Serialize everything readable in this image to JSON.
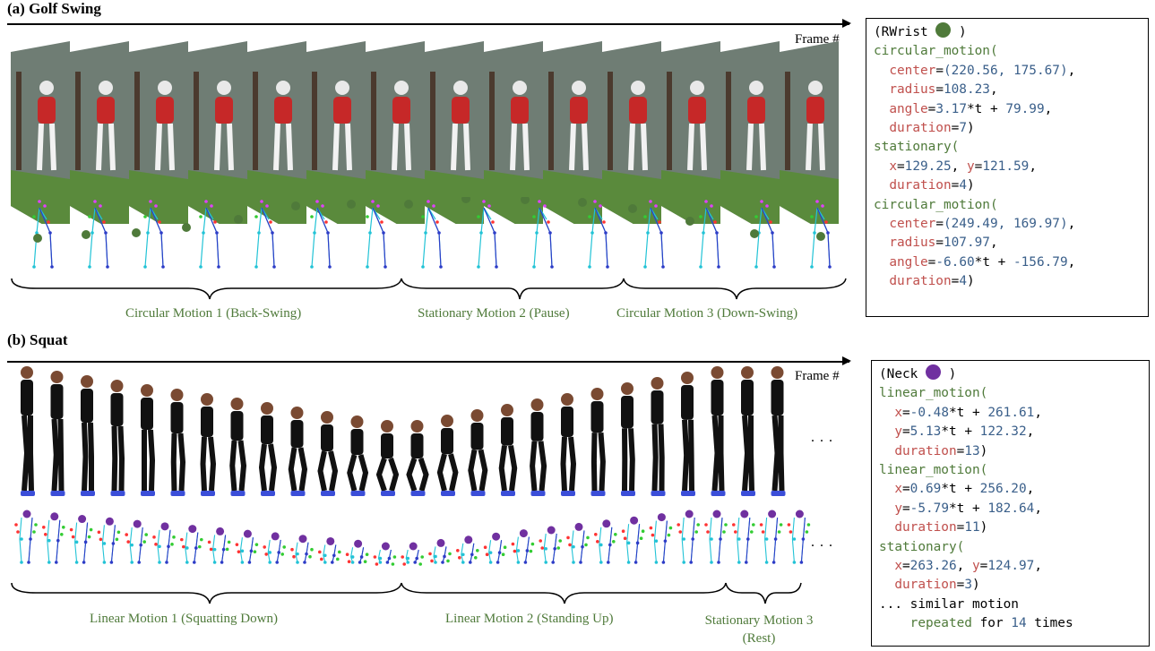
{
  "golf": {
    "title": "(a) Golf Swing",
    "frame_label": "Frame #",
    "joint_color": "#4f7a3a",
    "segments": [
      {
        "label": "Circular Motion 1 (Back-Swing)"
      },
      {
        "label": "Stationary Motion 2 (Pause)"
      },
      {
        "label": "Circular Motion 3 (Down-Swing)"
      }
    ],
    "code": {
      "header_open": "(RWrist ",
      "header_close": " )",
      "dot_color": "#4f7a3a",
      "blocks": [
        {
          "fn": "circular_motion(",
          "args": [
            {
              "key": "center",
              "eq": "=",
              "val": "(220.56, 175.67)",
              "tail": ","
            },
            {
              "key": "radius",
              "eq": "=",
              "val": "108.23",
              "tail": ","
            },
            {
              "key": "angle",
              "eq": "=",
              "val": "3.17",
              "mid": "*t + ",
              "val2": "79.99",
              "tail": ","
            },
            {
              "key": "duration",
              "eq": "=",
              "val": "7",
              "tail": ")"
            }
          ]
        },
        {
          "fn": "stationary(",
          "args": [
            {
              "key": "x",
              "eq": "=",
              "val": "129.25",
              "tail": ", ",
              "key2": "y",
              "val2": "121.59",
              "tail2": ","
            },
            {
              "key": "duration",
              "eq": "=",
              "val": "4",
              "tail": ")"
            }
          ]
        },
        {
          "fn": "circular_motion(",
          "args": [
            {
              "key": "center",
              "eq": "=",
              "val": "(249.49, 169.97)",
              "tail": ","
            },
            {
              "key": "radius",
              "eq": "=",
              "val": "107.97",
              "tail": ","
            },
            {
              "key": "angle",
              "eq": "=",
              "val": "-6.60",
              "mid": "*t + ",
              "val2": "-156.79",
              "tail": ","
            },
            {
              "key": "duration",
              "eq": "=",
              "val": "4",
              "tail": ")"
            }
          ]
        }
      ]
    }
  },
  "squat": {
    "title": "(b) Squat",
    "frame_label": "Frame #",
    "ellipsis": "...",
    "joint_color": "#7030a0",
    "segments": [
      {
        "label": "Linear Motion 1 (Squatting Down)"
      },
      {
        "label": "Linear Motion 2 (Standing Up)"
      },
      {
        "label": "Stationary Motion 3 (Rest)"
      }
    ],
    "code": {
      "header_open": "(Neck ",
      "header_close": " )",
      "dot_color": "#7030a0",
      "blocks": [
        {
          "fn": "linear_motion(",
          "args": [
            {
              "key": "x",
              "eq": "=",
              "val": "-0.48",
              "mid": "*t + ",
              "val2": "261.61",
              "tail": ","
            },
            {
              "key": "y",
              "eq": "=",
              "val": "5.13",
              "mid": "*t + ",
              "val2": "122.32",
              "tail": ","
            },
            {
              "key": "duration",
              "eq": "=",
              "val": "13",
              "tail": ")"
            }
          ]
        },
        {
          "fn": "linear_motion(",
          "args": [
            {
              "key": "x",
              "eq": "=",
              "val": "0.69",
              "mid": "*t + ",
              "val2": "256.20",
              "tail": ","
            },
            {
              "key": "y",
              "eq": "=",
              "val": "-5.79",
              "mid": "*t + ",
              "val2": "182.64",
              "tail": ","
            },
            {
              "key": "duration",
              "eq": "=",
              "val": "11",
              "tail": ")"
            }
          ]
        },
        {
          "fn": "stationary(",
          "args": [
            {
              "key": "x",
              "eq": "=",
              "val": "263.26",
              "tail": ", ",
              "key2": "y",
              "val2": "124.97",
              "tail2": ","
            },
            {
              "key": "duration",
              "eq": "=",
              "val": "3",
              "tail": ")"
            }
          ]
        }
      ],
      "footer_1": "... similar motion",
      "footer_2_a": "repeated",
      "footer_2_b": " for ",
      "footer_2_c": "14",
      "footer_2_d": " times"
    }
  }
}
